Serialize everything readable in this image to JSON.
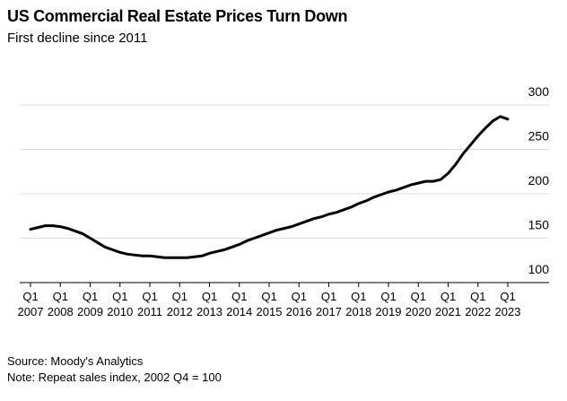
{
  "chart_data": {
    "type": "line",
    "title": "US Commercial Real Estate Prices Turn Down",
    "subtitle": "First decline since 2011",
    "source": "Source: Moody's Analytics",
    "note": "Note: Repeat sales index, 2002 Q4 = 100",
    "categories": [
      "Q1 2007",
      null,
      null,
      null,
      "Q1 2008",
      null,
      null,
      null,
      "Q1 2009",
      null,
      null,
      null,
      "Q1 2010",
      null,
      null,
      null,
      "Q1 2011",
      null,
      null,
      null,
      "Q1 2012",
      null,
      null,
      null,
      "Q1 2013",
      null,
      null,
      null,
      "Q1 2014",
      null,
      null,
      null,
      "Q1 2015",
      null,
      null,
      null,
      "Q1 2016",
      null,
      null,
      null,
      "Q1 2017",
      null,
      null,
      null,
      "Q1 2018",
      null,
      null,
      null,
      "Q1 2019",
      null,
      null,
      null,
      "Q1 2020",
      null,
      null,
      null,
      "Q1 2021",
      null,
      null,
      null,
      "Q1 2022",
      null,
      null,
      null,
      "Q1 2023"
    ],
    "series": [
      {
        "name": "Repeat sales index",
        "color": "#000000",
        "values": [
          160,
          162,
          164,
          164,
          163,
          161,
          158,
          155,
          150,
          145,
          140,
          137,
          134,
          132,
          131,
          130,
          130,
          129,
          128,
          128,
          128,
          128,
          129,
          130,
          133,
          135,
          137,
          140,
          143,
          147,
          150,
          153,
          156,
          159,
          161,
          163,
          166,
          169,
          172,
          174,
          177,
          179,
          182,
          185,
          189,
          192,
          196,
          199,
          202,
          204,
          207,
          210,
          212,
          214,
          214,
          216,
          223,
          233,
          245,
          255,
          265,
          274,
          282,
          287,
          284
        ]
      }
    ],
    "ylim": [
      100,
      300
    ],
    "yticks": [
      100,
      150,
      200,
      250,
      300
    ],
    "grid": true
  }
}
